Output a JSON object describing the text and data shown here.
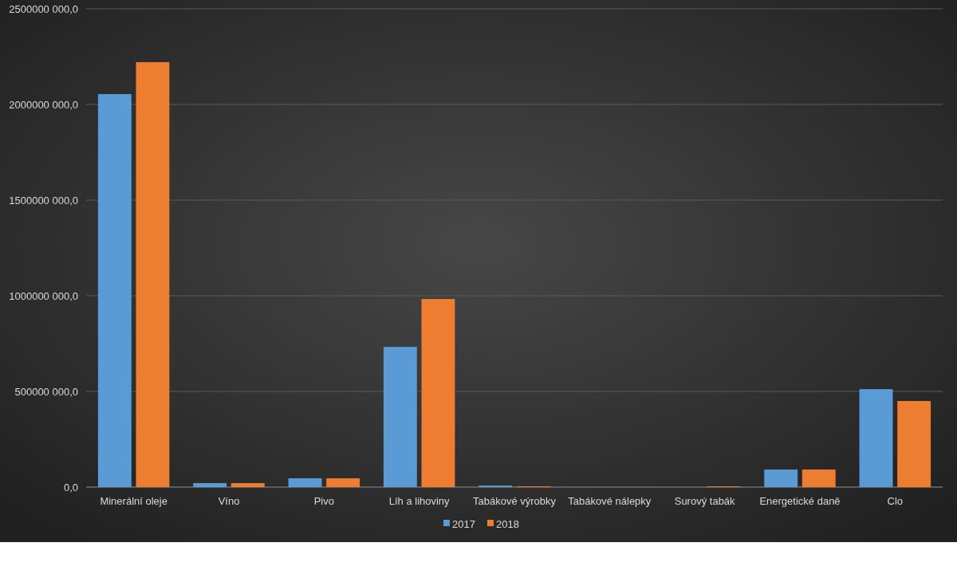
{
  "chart_data": {
    "type": "bar",
    "categories": [
      "Minerální oleje",
      "Víno",
      "Pivo",
      "Líh a lihoviny",
      "Tabákové výrobky",
      "Tabákové nálepky",
      "Surový tabák",
      "Energetické daně",
      "Clo"
    ],
    "series": [
      {
        "name": "2017",
        "color": "#5b9bd5",
        "values": [
          2054000000,
          21000000,
          46000000,
          733000000,
          8000000,
          0,
          0,
          92000000,
          512000000
        ]
      },
      {
        "name": "2018",
        "color": "#ed7d31",
        "values": [
          2221000000,
          21000000,
          46000000,
          983000000,
          4000000,
          0,
          4000000,
          92000000,
          450000000
        ]
      }
    ],
    "ylim": [
      0,
      2500000000
    ],
    "yticks": [
      {
        "value": 0,
        "label": "0,0"
      },
      {
        "value": 500000000,
        "label": "500000 000,0"
      },
      {
        "value": 1000000000,
        "label": "1000000 000,0"
      },
      {
        "value": 1500000000,
        "label": "1500000 000,0"
      },
      {
        "value": 2000000000,
        "label": "2000000 000,0"
      },
      {
        "value": 2500000000,
        "label": "2500000 000,0"
      }
    ],
    "grid": "y",
    "legend": "bottom"
  }
}
